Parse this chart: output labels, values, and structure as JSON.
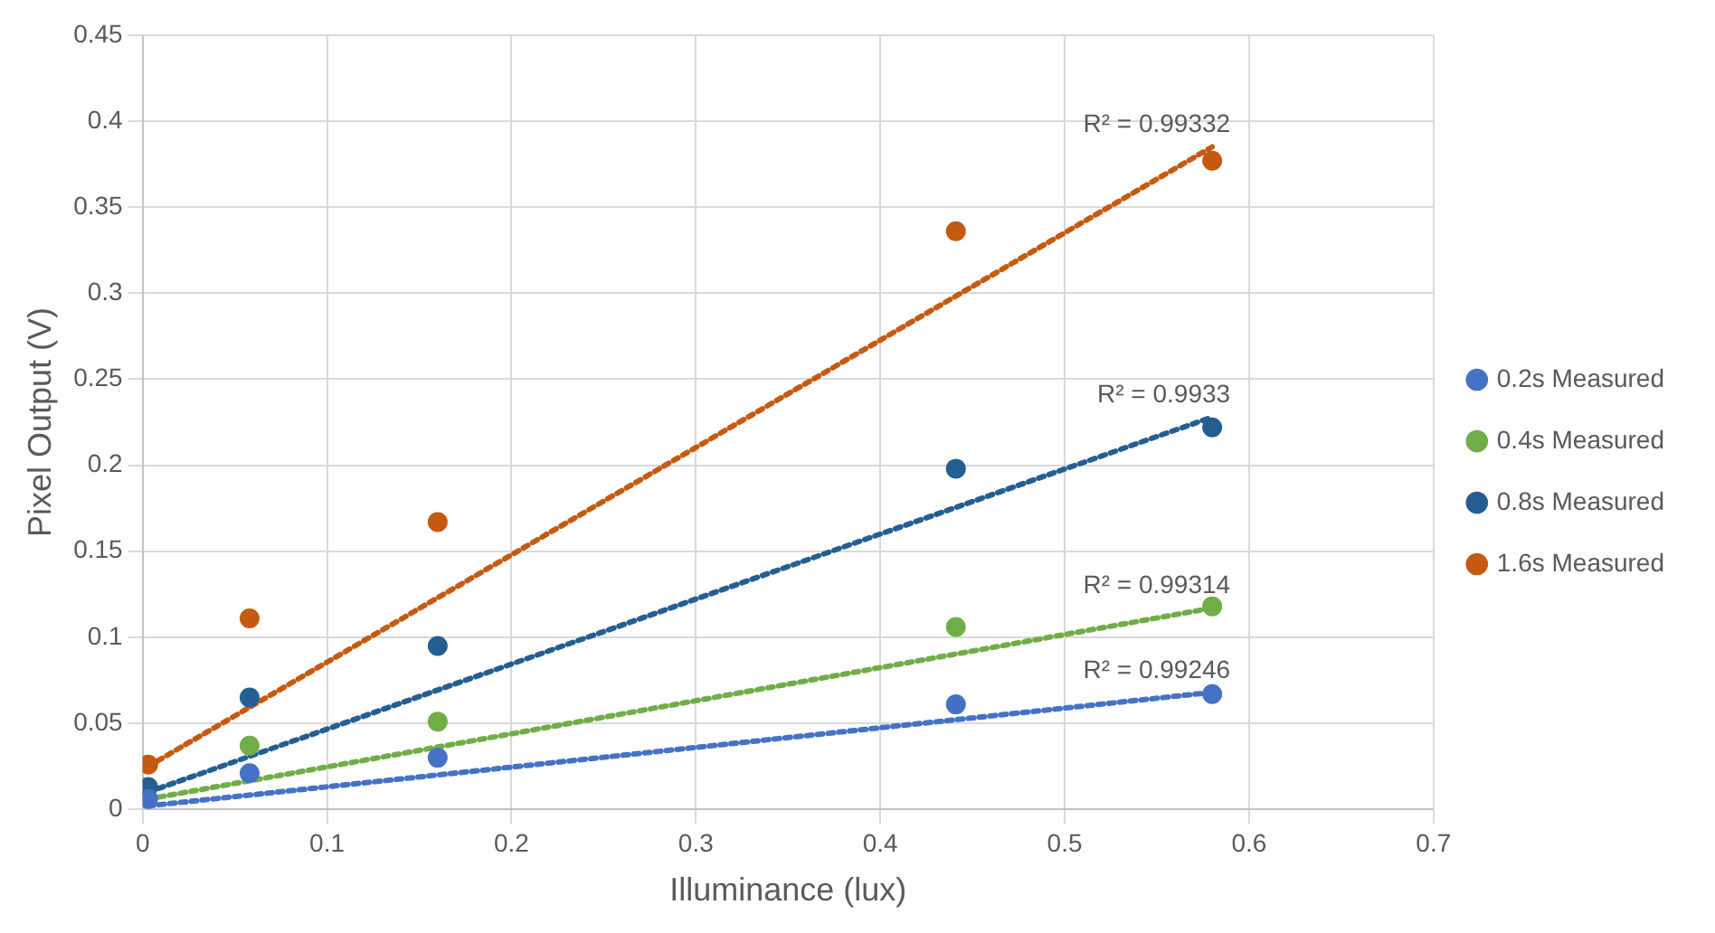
{
  "chart_data": {
    "type": "scatter",
    "xlabel": "Illuminance (lux)",
    "ylabel": "Pixel Output (V)",
    "x": [
      0.003,
      0.058,
      0.16,
      0.441,
      0.58
    ],
    "series": [
      {
        "name": "0.2s Measured",
        "color": "#4472c4",
        "values": [
          0.006,
          0.021,
          0.03,
          0.061,
          0.067
        ]
      },
      {
        "name": "0.4s Measured",
        "color": "#70ad47",
        "values": [
          null,
          0.037,
          0.051,
          0.106,
          0.118
        ]
      },
      {
        "name": "0.8s Measured",
        "color": "#255e91",
        "values": [
          0.013,
          0.065,
          0.095,
          0.198,
          0.222
        ]
      },
      {
        "name": "1.6s Measured",
        "color": "#c55a11",
        "values": [
          0.026,
          0.111,
          0.167,
          0.336,
          0.377
        ]
      },
      {
        "type": "line",
        "color": "#4472c4",
        "values": [
          0.002,
          null,
          null,
          null,
          0.068
        ],
        "line_style": "dotted",
        "marker": "none"
      },
      {
        "type": "line",
        "color": "#70ad47",
        "values": [
          0.006,
          null,
          null,
          null,
          0.117
        ],
        "line_style": "dotted",
        "marker": "none"
      },
      {
        "type": "line",
        "color": "#255e91",
        "values": [
          0.01,
          null,
          null,
          null,
          0.228
        ],
        "line_style": "dotted",
        "marker": "none"
      },
      {
        "type": "line",
        "color": "#c55a11",
        "values": [
          0.025,
          null,
          null,
          null,
          0.385
        ],
        "line_style": "dotted",
        "marker": "none"
      }
    ],
    "annotations": [
      "R² = 0.99246",
      "R² = 0.99314",
      "R² = 0.9933",
      "R² = 0.99332"
    ],
    "xlim": [
      0,
      0.7
    ],
    "xticks": [
      0,
      0.1,
      0.2,
      0.3,
      0.4,
      0.5,
      0.6,
      0.7
    ],
    "ylim": [
      0,
      0.45
    ],
    "yticks": [
      0,
      0.05,
      0.1,
      0.15,
      0.2,
      0.25,
      0.3,
      0.35,
      0.4,
      0.45
    ],
    "grid": true,
    "legend": "right",
    "marker": "circle"
  }
}
